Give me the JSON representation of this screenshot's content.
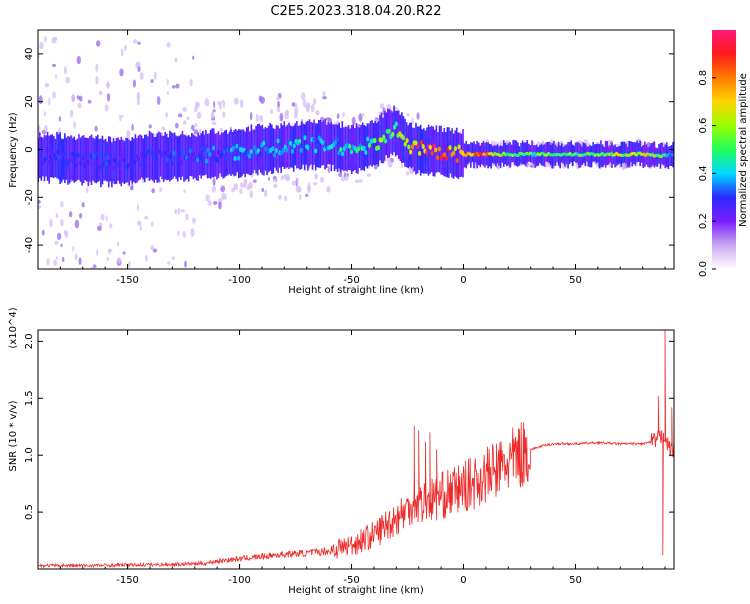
{
  "figure_title": "C2E5.2023.318.04.20.R22",
  "colors": {
    "snr_line": "#ee2a2a",
    "colorbar": [
      "#ffffff",
      "#c9a7ee",
      "#7a1fff",
      "#2a2aff",
      "#00d8ff",
      "#22ff5a",
      "#9aff00",
      "#ffd400",
      "#ff7b00",
      "#ff1a1a",
      "#ff1a7a"
    ]
  },
  "chart_data": [
    {
      "type": "heatmap",
      "title": "",
      "xlabel": "Height of straight line (km)",
      "ylabel": "Frequency (Hz)",
      "xlim": [
        -190,
        94
      ],
      "ylim": [
        -50,
        50
      ],
      "x_ticks": [
        -150,
        -100,
        -50,
        0,
        50
      ],
      "x_tick_labels": [
        "-150",
        "-100",
        "-50",
        "0",
        "50"
      ],
      "y_ticks": [
        40,
        20,
        0,
        -20,
        -40
      ],
      "y_tick_labels": [
        "40",
        "20",
        "0",
        "-20",
        "-40"
      ],
      "colorbar": {
        "label": "Normalized spectral amplitude",
        "range": [
          0.0,
          1.0
        ],
        "ticks": [
          0.0,
          0.2,
          0.4,
          0.6,
          0.8
        ],
        "tick_labels": [
          "0.0",
          "0.2",
          "0.4",
          "0.6",
          "0.8"
        ]
      },
      "ridge": {
        "x": [
          -190,
          -175,
          -160,
          -150,
          -140,
          -125,
          -110,
          -100,
          -90,
          -80,
          -70,
          -60,
          -50,
          -40,
          -35,
          -30,
          -25,
          -20,
          -10,
          0,
          10,
          20,
          40,
          60,
          80,
          88,
          92,
          94
        ],
        "frequency": [
          -3,
          -4,
          -5,
          -5,
          -3,
          -3,
          -2,
          -1,
          0,
          1,
          2,
          2,
          0,
          2,
          6,
          8,
          2,
          0,
          -1,
          -2,
          -2,
          -2,
          -2,
          -2,
          -2,
          -3,
          -2,
          -2
        ],
        "amplitude": [
          0.3,
          0.3,
          0.32,
          0.3,
          0.32,
          0.33,
          0.35,
          0.38,
          0.4,
          0.42,
          0.45,
          0.45,
          0.47,
          0.55,
          0.6,
          0.55,
          0.7,
          0.95,
          0.9,
          0.85,
          0.9,
          0.55,
          0.55,
          0.6,
          0.7,
          0.55,
          0.45,
          0.4
        ]
      }
    },
    {
      "type": "line",
      "title": "",
      "xlabel": "Height of straight line (km)",
      "ylabel": "SNR (10 * v/v)",
      "y_multiplier": "(x10^4)",
      "xlim": [
        -190,
        94
      ],
      "ylim": [
        0,
        2.1
      ],
      "x_ticks": [
        -150,
        -100,
        -50,
        0,
        50
      ],
      "x_tick_labels": [
        "-150",
        "-100",
        "-50",
        "0",
        "50"
      ],
      "y_ticks": [
        0.5,
        1.0,
        1.5,
        2.0
      ],
      "y_tick_labels": [
        "0.5",
        "1.0",
        "1.5",
        "2.0"
      ],
      "series": [
        {
          "x": [
            -190,
            -170,
            -150,
            -130,
            -115,
            -110,
            -100,
            -90,
            -80,
            -70,
            -60,
            -55,
            -50,
            -45,
            -40,
            -35,
            -30,
            -25,
            -22,
            -20,
            -15,
            -10,
            -5,
            0,
            5,
            10,
            15,
            20,
            25,
            30,
            35,
            40,
            50,
            60,
            70,
            80,
            85,
            88,
            90,
            91,
            92,
            94
          ],
          "values": [
            0.03,
            0.03,
            0.035,
            0.04,
            0.05,
            0.07,
            0.09,
            0.11,
            0.13,
            0.14,
            0.16,
            0.19,
            0.21,
            0.26,
            0.3,
            0.38,
            0.45,
            0.52,
            0.62,
            0.58,
            0.6,
            0.64,
            0.68,
            0.72,
            0.76,
            0.82,
            0.87,
            0.93,
            1.0,
            1.05,
            1.08,
            1.1,
            1.1,
            1.11,
            1.1,
            1.1,
            1.12,
            1.15,
            1.2,
            1.1,
            1.05,
            1.05
          ],
          "spikes": [
            {
              "x": -22,
              "value": 1.26
            },
            {
              "x": -20,
              "value": 1.22
            },
            {
              "x": -17,
              "value": 1.12
            },
            {
              "x": -15,
              "value": 1.2
            },
            {
              "x": -12,
              "value": 1.05
            },
            {
              "x": 87,
              "value": 1.52
            },
            {
              "x": 89,
              "value": 0.12
            },
            {
              "x": 90,
              "value": 2.1
            },
            {
              "x": 93,
              "value": 1.42
            }
          ]
        }
      ]
    }
  ]
}
